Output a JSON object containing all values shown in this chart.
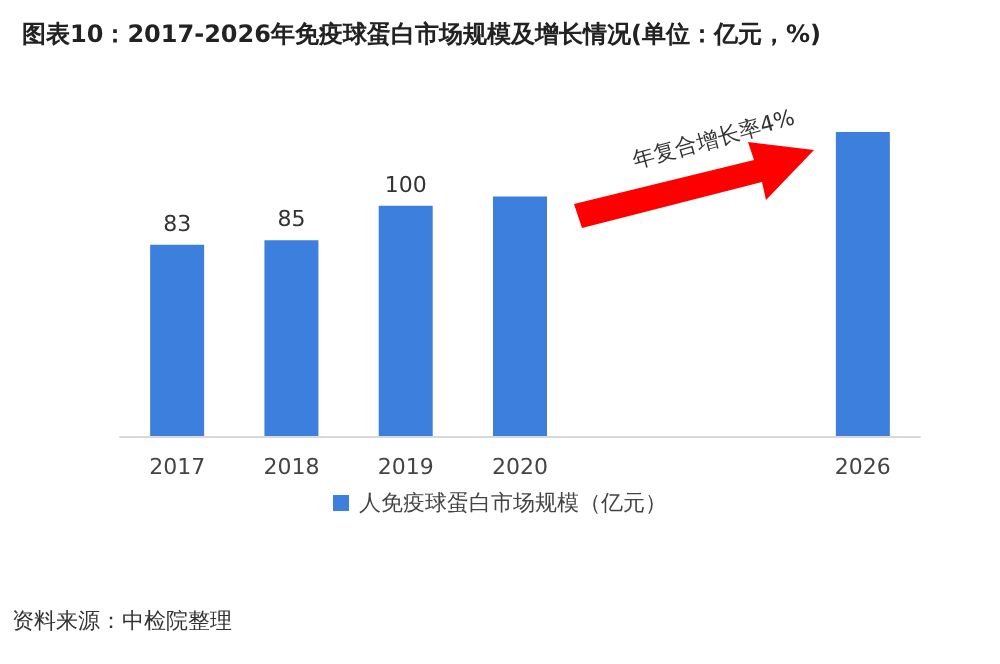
{
  "chart_data": {
    "type": "bar",
    "title": "图表10：2017-2026年免疫球蛋白市场规模及增长情况(单位：亿元，%)",
    "categories": [
      "2017",
      "2018",
      "2019",
      "2020",
      null,
      null,
      "2026"
    ],
    "series": [
      {
        "name": "人免疫球蛋白市场规模（亿元）",
        "color": "#3d7fdc",
        "values": [
          83,
          85,
          100,
          104,
          null,
          null,
          132
        ],
        "value_labels": [
          "83",
          "85",
          "100",
          null,
          null,
          null,
          null
        ]
      }
    ],
    "legend": "bottom",
    "grid": false,
    "annotations": [
      "年复合增长率4%",
      "资料来源：中检院整理"
    ]
  }
}
